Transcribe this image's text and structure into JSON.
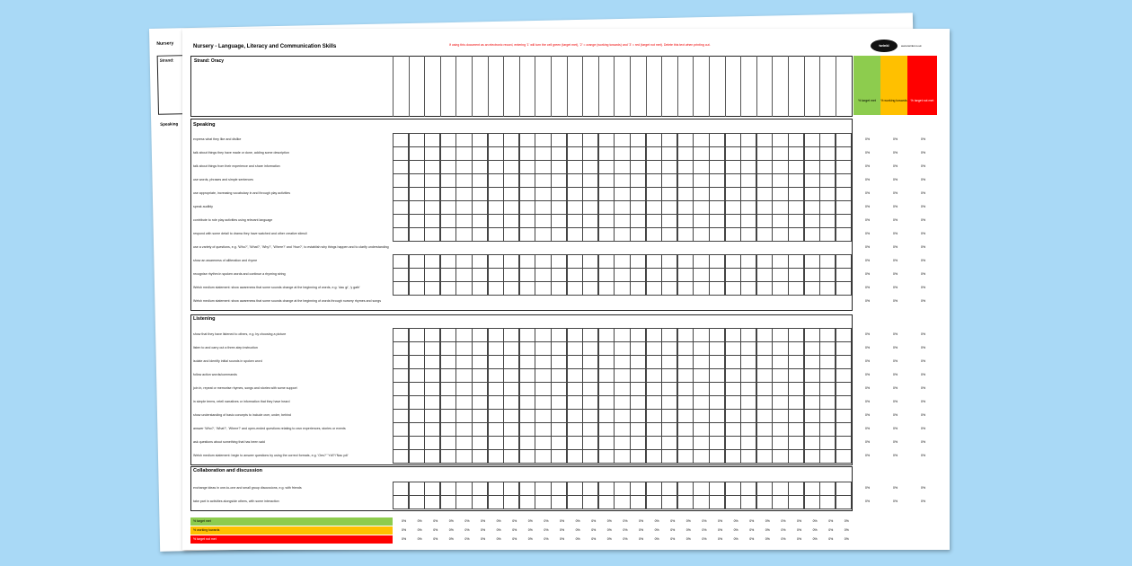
{
  "document": {
    "title": "Nursery - Language, Literacy and Communication Skills",
    "instruction_note": "If using this document as an electronic record, entering '1' will turn the cell green (target met), '2' = orange (working towards) and '3' = red (target not met). Delete this text when printing out.",
    "logo_text": "twinkl",
    "site_text": "www.twinkl.co.uk",
    "strand_label": "Strand: Oracy",
    "back_page_title": "Nursery",
    "back_strand_label": "Strand:",
    "back_section_label": "Speaking"
  },
  "key_columns": [
    {
      "label": "% target met",
      "color": "#8dcc4e"
    },
    {
      "label": "% working towards",
      "color": "#ffc000"
    },
    {
      "label": "% target not met",
      "color": "#ff0000"
    }
  ],
  "grid_column_count": 29,
  "percent_value": "0%",
  "sections": [
    {
      "title": "Speaking",
      "items": [
        "express what they like and dislike",
        "talk about things they have made or done, adding some description",
        "talk about things from their experience and share information",
        "use words, phrases and simple sentences",
        "use appropriate, increasing vocabulary in and through play activities",
        "speak audibly",
        "contribute to role play activities using relevant language",
        "respond with some detail to drama they have watched and other creative stimuli",
        "use a variety of questions, e.g. 'Who?', 'What?', 'Why?', 'Where?' and 'How?', to establish why things happen and to clarify understanding",
        "show an awareness of alliteration and rhyme",
        "recognise rhythm in spoken words and continue a rhyming string",
        "Welsh medium statement: show awareness that some sounds change at the beginning of words, e.g. 'dau gi', 'y gath'",
        "Welsh medium statement: show awareness that some sounds change at the beginning of words through nursery rhymes and songs"
      ]
    },
    {
      "title": "Listening",
      "items": [
        "show that they have listened to others, e.g. by choosing a picture",
        "listen to and carry out a three-step instruction",
        "isolate and identify initial sounds in spoken word",
        "follow action words/commands",
        "join in, repeat or memorise rhymes, songs and stories with some support",
        "in simple terms, retell narratives or information that they have heard",
        "show understanding of basic concepts to include over, under, behind",
        "answer 'Who?', 'What?', 'Where?' and open-ended questions relating to own experiences, stories or events",
        "ask questions about something that has been said",
        "Welsh medium statement: begin to answer questions by using the correct formats, e.g. 'Oes?' 'Ydi?'/'Nac ydi'"
      ]
    },
    {
      "title": "Collaboration and discussion",
      "items": [
        "exchange ideas in one-to-one and small group discussions, e.g. with friends",
        "take part in activities alongside others, with some interaction"
      ]
    }
  ],
  "summary_rows": [
    {
      "label": "% target met",
      "color": "#8dcc4e",
      "text_color": "#000000"
    },
    {
      "label": "% working towards",
      "color": "#ffc000",
      "text_color": "#000000"
    },
    {
      "label": "% target not met",
      "color": "#ff0000",
      "text_color": "#ffffff"
    }
  ]
}
